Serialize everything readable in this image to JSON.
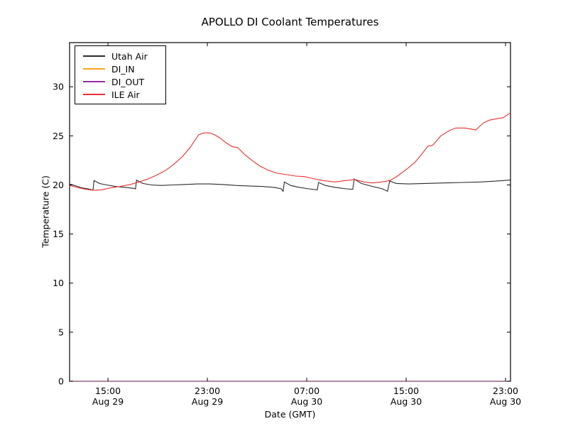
{
  "chart_data": {
    "type": "line",
    "title": "APOLLO DI Coolant Temperatures",
    "xlabel": "Date (GMT)",
    "ylabel": "Temperature (C)",
    "background_color": "#ffffff",
    "axis_color": "#000000",
    "grid": false,
    "legend_position": "upper left",
    "ylim": [
      0,
      34.5
    ],
    "x_domain_hours": [
      11.91,
      47.4
    ],
    "y_ticks": [
      0,
      5,
      10,
      15,
      20,
      25,
      30
    ],
    "x_ticks": [
      {
        "value": 15,
        "label": "15:00",
        "sublabel": "Aug 29"
      },
      {
        "value": 23,
        "label": "23:00",
        "sublabel": "Aug 29"
      },
      {
        "value": 31,
        "label": "07:00",
        "sublabel": "Aug 30"
      },
      {
        "value": 39,
        "label": "15:00",
        "sublabel": "Aug 30"
      },
      {
        "value": 47,
        "label": "23:00",
        "sublabel": "Aug 30"
      }
    ],
    "series": [
      {
        "name": "Utah Air",
        "color": "#2b2b2b",
        "points": [
          [
            11.91,
            20.1
          ],
          [
            12.3,
            19.95
          ],
          [
            12.9,
            19.7
          ],
          [
            13.4,
            19.6
          ],
          [
            13.72,
            19.5
          ],
          [
            13.8,
            19.52
          ],
          [
            13.88,
            20.45
          ],
          [
            14.3,
            20.15
          ],
          [
            14.9,
            20.0
          ],
          [
            15.6,
            19.85
          ],
          [
            16.4,
            19.75
          ],
          [
            17.1,
            19.65
          ],
          [
            17.22,
            19.6
          ],
          [
            17.3,
            20.5
          ],
          [
            17.8,
            20.15
          ],
          [
            18.5,
            20.0
          ],
          [
            19.3,
            19.95
          ],
          [
            20.2,
            20.0
          ],
          [
            21.2,
            20.05
          ],
          [
            22.2,
            20.1
          ],
          [
            23.2,
            20.1
          ],
          [
            24.2,
            20.05
          ],
          [
            25.3,
            19.95
          ],
          [
            26.3,
            19.9
          ],
          [
            27.4,
            19.85
          ],
          [
            28.4,
            19.75
          ],
          [
            28.95,
            19.6
          ],
          [
            29.1,
            19.35
          ],
          [
            29.2,
            20.3
          ],
          [
            29.7,
            19.95
          ],
          [
            30.4,
            19.75
          ],
          [
            31.2,
            19.6
          ],
          [
            31.85,
            19.5
          ],
          [
            31.95,
            20.25
          ],
          [
            32.5,
            19.95
          ],
          [
            33.3,
            19.75
          ],
          [
            34.2,
            19.6
          ],
          [
            34.7,
            19.55
          ],
          [
            34.82,
            20.6
          ],
          [
            35.4,
            20.15
          ],
          [
            36.3,
            19.85
          ],
          [
            37.1,
            19.6
          ],
          [
            37.5,
            19.35
          ],
          [
            37.68,
            20.4
          ],
          [
            38.2,
            20.15
          ],
          [
            39.2,
            20.1
          ],
          [
            40.5,
            20.15
          ],
          [
            42.0,
            20.2
          ],
          [
            43.5,
            20.25
          ],
          [
            45.0,
            20.3
          ],
          [
            46.3,
            20.4
          ],
          [
            47.4,
            20.5
          ]
        ]
      },
      {
        "name": "DI_IN",
        "color": "#ffa51e",
        "points": [
          [
            11.91,
            0
          ],
          [
            47.4,
            0
          ]
        ]
      },
      {
        "name": "DI_OUT",
        "color": "#8f2f9e",
        "points": [
          [
            11.91,
            0
          ],
          [
            47.4,
            0
          ]
        ]
      },
      {
        "name": "ILE Air",
        "color": "#e93030",
        "points": [
          [
            11.91,
            19.95
          ],
          [
            12.5,
            19.75
          ],
          [
            13.2,
            19.55
          ],
          [
            13.9,
            19.45
          ],
          [
            14.5,
            19.5
          ],
          [
            15.2,
            19.7
          ],
          [
            16.0,
            19.85
          ],
          [
            16.8,
            20.05
          ],
          [
            17.5,
            20.3
          ],
          [
            18.2,
            20.6
          ],
          [
            18.9,
            21.0
          ],
          [
            19.6,
            21.45
          ],
          [
            20.3,
            22.1
          ],
          [
            21.0,
            22.9
          ],
          [
            21.6,
            23.8
          ],
          [
            22.0,
            24.55
          ],
          [
            22.3,
            25.1
          ],
          [
            22.7,
            25.3
          ],
          [
            23.2,
            25.3
          ],
          [
            23.6,
            25.1
          ],
          [
            24.0,
            24.8
          ],
          [
            24.5,
            24.3
          ],
          [
            25.0,
            23.9
          ],
          [
            25.45,
            23.8
          ],
          [
            26.0,
            23.1
          ],
          [
            26.6,
            22.5
          ],
          [
            27.2,
            21.95
          ],
          [
            27.9,
            21.5
          ],
          [
            28.6,
            21.2
          ],
          [
            29.4,
            21.05
          ],
          [
            30.1,
            20.9
          ],
          [
            30.8,
            20.85
          ],
          [
            31.5,
            20.65
          ],
          [
            32.3,
            20.45
          ],
          [
            33.3,
            20.3
          ],
          [
            34.1,
            20.45
          ],
          [
            34.9,
            20.55
          ],
          [
            35.6,
            20.3
          ],
          [
            36.3,
            20.2
          ],
          [
            37.0,
            20.3
          ],
          [
            37.7,
            20.45
          ],
          [
            38.3,
            20.9
          ],
          [
            39.0,
            21.55
          ],
          [
            39.7,
            22.3
          ],
          [
            40.3,
            23.2
          ],
          [
            40.75,
            23.95
          ],
          [
            41.15,
            24.05
          ],
          [
            41.8,
            25.0
          ],
          [
            42.5,
            25.55
          ],
          [
            43.0,
            25.8
          ],
          [
            43.7,
            25.8
          ],
          [
            44.2,
            25.7
          ],
          [
            44.6,
            25.6
          ],
          [
            45.2,
            26.3
          ],
          [
            45.7,
            26.6
          ],
          [
            46.3,
            26.75
          ],
          [
            46.8,
            26.85
          ],
          [
            47.1,
            27.1
          ],
          [
            47.4,
            27.35
          ]
        ]
      }
    ]
  }
}
